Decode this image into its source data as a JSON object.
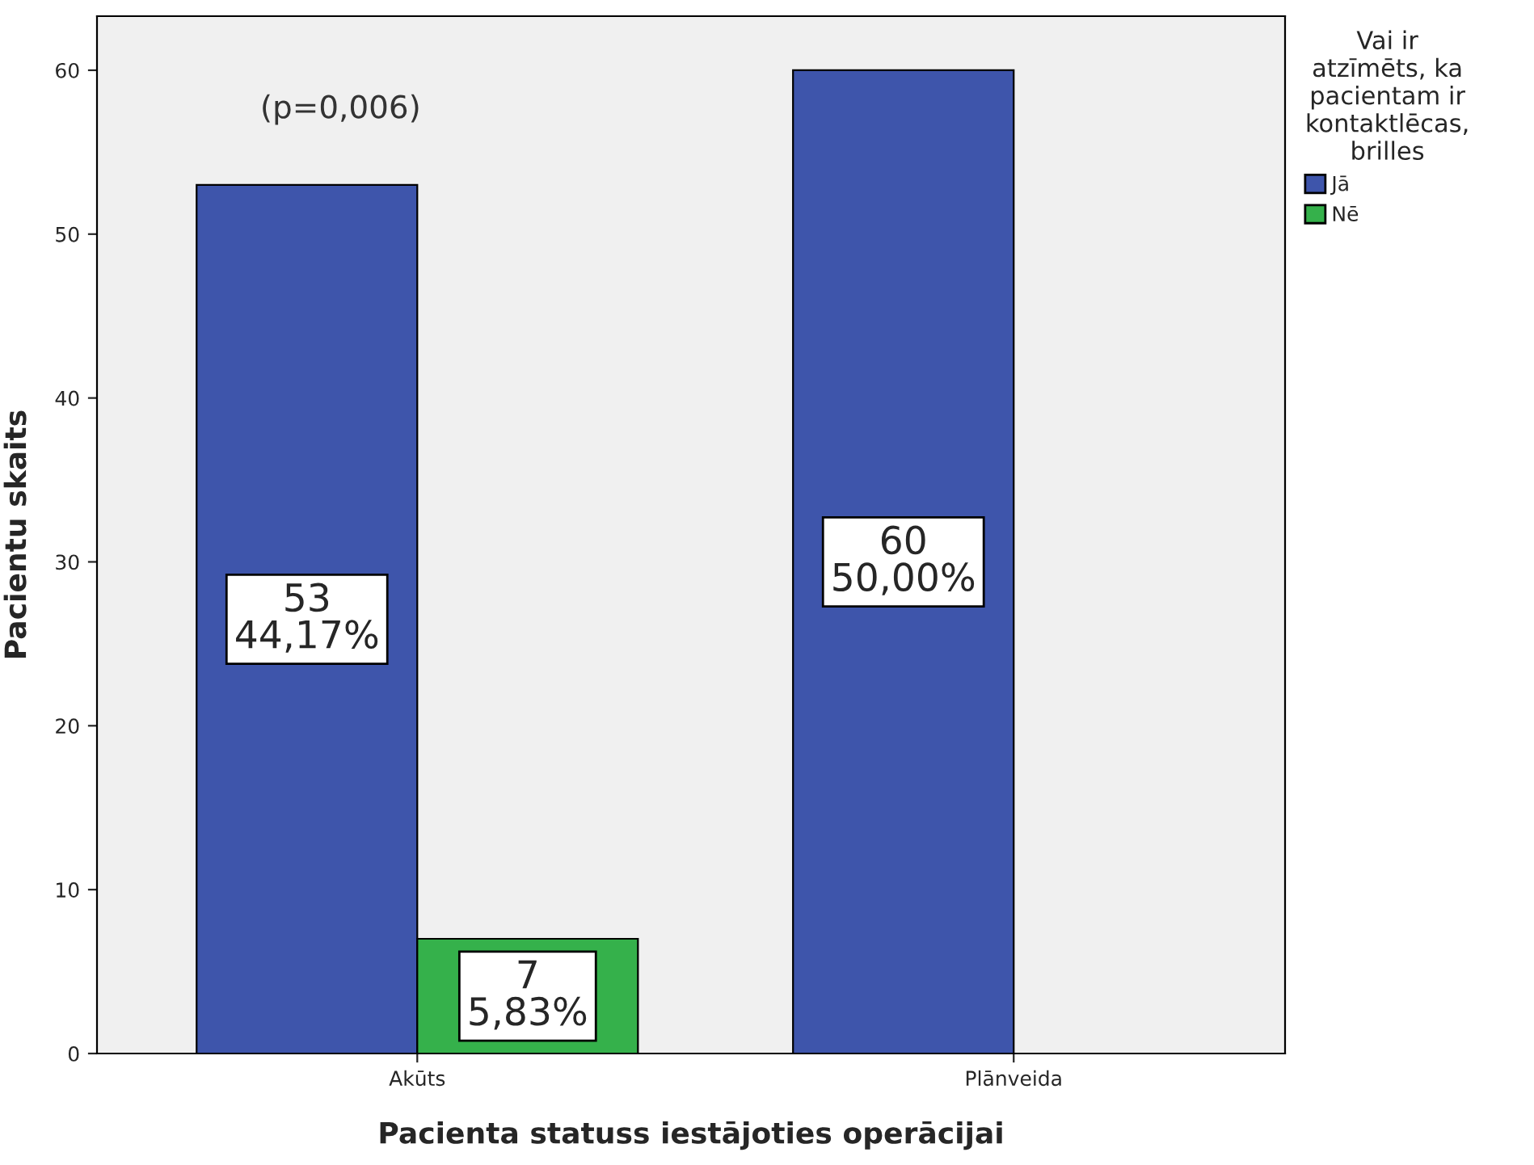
{
  "chart_data": {
    "type": "bar",
    "xlabel": "Pacienta statuss iestājoties operācijai",
    "ylabel": "Pacientu skaits",
    "legend_title": "Vai ir atzīmēts, ka pacientam ir kontaktlēcas, brilles",
    "categories": [
      "Akūts",
      "Plānveida"
    ],
    "series": [
      {
        "name": "Jā",
        "color": "#3e55ab",
        "values": [
          53,
          60
        ],
        "value_labels": [
          "53\n44,17%",
          "60\n50,00%"
        ]
      },
      {
        "name": "Nē",
        "color": "#35b14b",
        "values": [
          7,
          null
        ],
        "value_labels": [
          "7\n5,83%",
          null
        ]
      }
    ],
    "annotations": [
      "(p=0,006)"
    ],
    "ylim": [
      0,
      63.3
    ],
    "yticks": [
      0,
      10,
      20,
      30,
      40,
      50,
      60
    ],
    "grid": false,
    "legend": "right"
  }
}
